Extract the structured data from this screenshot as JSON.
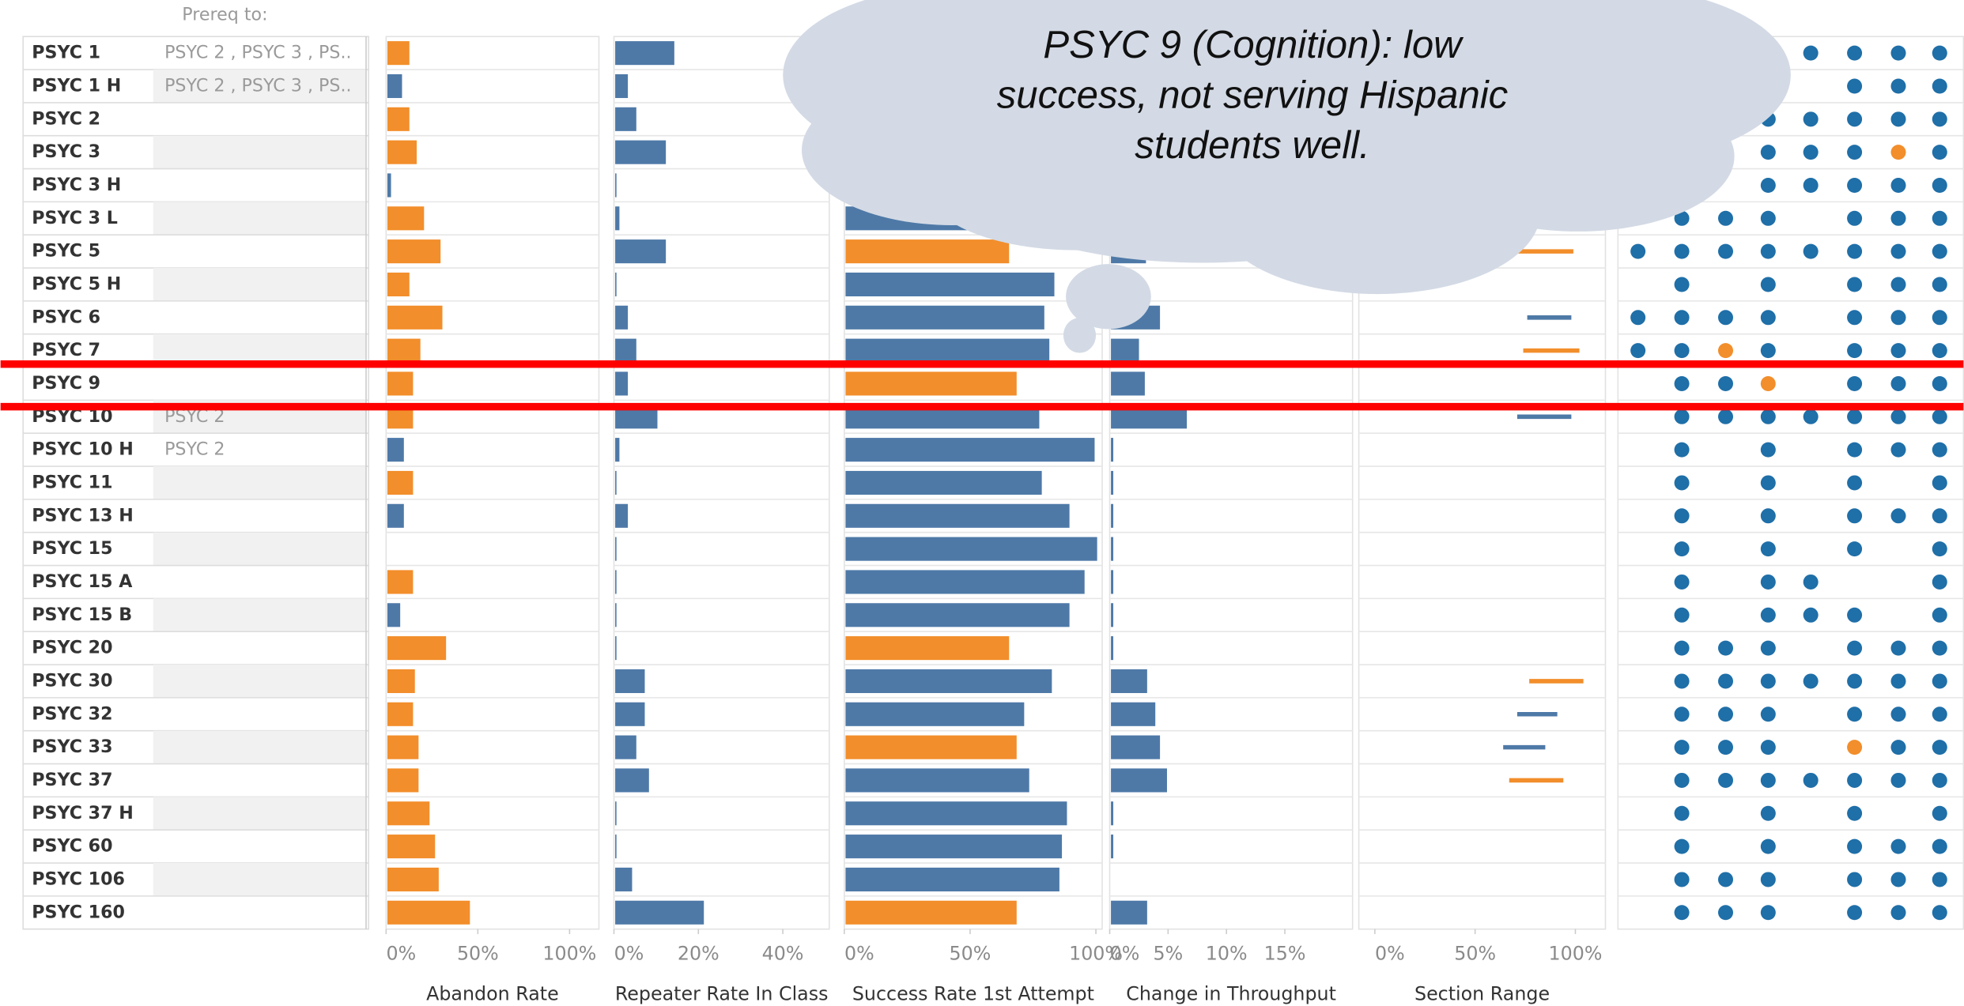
{
  "table": {
    "header": "Prereq to:",
    "courses": [
      "PSYC 1",
      "PSYC 1 H",
      "PSYC 2",
      "PSYC 3",
      "PSYC 3 H",
      "PSYC 3 L",
      "PSYC 5",
      "PSYC 5 H",
      "PSYC 6",
      "PSYC 7",
      "PSYC 9",
      "PSYC 10",
      "PSYC 10 H",
      "PSYC 11",
      "PSYC 13 H",
      "PSYC 15",
      "PSYC 15 A",
      "PSYC 15 B",
      "PSYC 20",
      "PSYC 30",
      "PSYC 32",
      "PSYC 33",
      "PSYC 37",
      "PSYC 37 H",
      "PSYC 60",
      "PSYC 106",
      "PSYC 160"
    ],
    "prereqs": [
      "PSYC 2 , PSYC 3 , PS..",
      "PSYC 2 , PSYC 3 , PS..",
      null,
      null,
      null,
      null,
      null,
      null,
      null,
      null,
      null,
      "PSYC 2",
      "PSYC 2",
      null,
      null,
      null,
      null,
      null,
      null,
      null,
      null,
      null,
      null,
      null,
      null,
      null,
      null
    ]
  },
  "annotation": {
    "lines": [
      "PSYC 9 (Cognition): low",
      "success, not serving Hispanic",
      "students well."
    ]
  },
  "chart_data": [
    {
      "type": "bar",
      "xlabel": "Abandon Rate",
      "values": [
        12,
        8,
        12,
        16,
        2,
        20,
        29,
        12,
        30,
        18,
        14,
        14,
        9,
        14,
        9,
        0,
        14,
        7,
        32,
        15,
        14,
        17,
        17,
        23,
        26,
        28,
        45
      ],
      "colors": [
        "#f28e2b",
        "#4e79a7",
        "#f28e2b",
        "#f28e2b",
        "#4e79a7",
        "#f28e2b",
        "#f28e2b",
        "#f28e2b",
        "#f28e2b",
        "#f28e2b",
        "#f28e2b",
        "#f28e2b",
        "#4e79a7",
        "#f28e2b",
        "#4e79a7",
        "#f28e2b",
        "#f28e2b",
        "#4e79a7",
        "#f28e2b",
        "#f28e2b",
        "#f28e2b",
        "#f28e2b",
        "#f28e2b",
        "#f28e2b",
        "#f28e2b",
        "#f28e2b",
        "#f28e2b"
      ],
      "xlim": [
        0,
        116
      ],
      "xticks": [
        {
          "value": 0,
          "label": "0%"
        },
        {
          "value": 50,
          "label": "50%"
        },
        {
          "value": 100,
          "label": "100%"
        }
      ]
    },
    {
      "type": "bar",
      "xlabel": "Repeater Rate In Class",
      "values": [
        14,
        3,
        5,
        12,
        0.3,
        1,
        12,
        0.3,
        3,
        5,
        3,
        10,
        1,
        0.3,
        3,
        0.3,
        0.3,
        0.3,
        0.3,
        7,
        7,
        5,
        8,
        0.3,
        0.3,
        4,
        21
      ],
      "color": "#4e79a7",
      "xlim": [
        0,
        51
      ],
      "xticks": [
        {
          "value": 0,
          "label": "0%"
        },
        {
          "value": 20,
          "label": "20%"
        },
        {
          "value": 40,
          "label": "40%"
        }
      ]
    },
    {
      "type": "bar",
      "xlabel": "Success Rate 1st Attempt",
      "values": [
        75,
        90,
        72,
        70,
        92,
        80,
        65,
        83,
        79,
        81,
        68,
        77,
        99,
        78,
        89,
        100,
        95,
        89,
        65,
        82,
        71,
        68,
        73,
        88,
        86,
        85,
        68
      ],
      "colors": [
        "#4e79a7",
        "#4e79a7",
        "#4e79a7",
        "#4e79a7",
        "#4e79a7",
        "#4e79a7",
        "#f28e2b",
        "#4e79a7",
        "#4e79a7",
        "#4e79a7",
        "#f28e2b",
        "#4e79a7",
        "#4e79a7",
        "#4e79a7",
        "#4e79a7",
        "#4e79a7",
        "#4e79a7",
        "#4e79a7",
        "#f28e2b",
        "#4e79a7",
        "#4e79a7",
        "#f28e2b",
        "#4e79a7",
        "#4e79a7",
        "#4e79a7",
        "#4e79a7",
        "#f28e2b"
      ],
      "xlim": [
        0,
        102.5
      ],
      "xticks": [
        {
          "value": 0,
          "label": "0%"
        },
        {
          "value": 50,
          "label": "50%"
        },
        {
          "value": 100,
          "label": "100%"
        }
      ]
    },
    {
      "type": "bar",
      "xlabel": "Change in Throughput",
      "values": [
        2,
        1,
        3,
        2,
        0.2,
        1,
        3,
        0.2,
        4.2,
        2.4,
        2.9,
        6.5,
        0.2,
        0.2,
        0.2,
        0.2,
        0.2,
        0.2,
        0.2,
        3.1,
        3.8,
        4.2,
        4.8,
        0.2,
        0.2,
        0,
        3.1
      ],
      "color": "#4e79a7",
      "xlim": [
        0,
        20.8
      ],
      "xticks": [
        {
          "value": 0,
          "label": "0%"
        },
        {
          "value": 5,
          "label": "5%"
        },
        {
          "value": 10,
          "label": "10%"
        },
        {
          "value": 15,
          "label": "15%"
        }
      ]
    },
    {
      "type": "range",
      "xlabel": "Section Range",
      "low": [
        null,
        null,
        null,
        null,
        null,
        null,
        43,
        null,
        76,
        74,
        null,
        71,
        null,
        null,
        null,
        null,
        null,
        null,
        null,
        77,
        71,
        64,
        67,
        null,
        null,
        null,
        null
      ],
      "high": [
        null,
        null,
        null,
        null,
        null,
        null,
        99,
        null,
        98,
        102,
        null,
        98,
        null,
        null,
        null,
        null,
        null,
        null,
        null,
        104,
        91,
        85,
        94,
        null,
        null,
        null,
        null
      ],
      "colors": [
        null,
        null,
        null,
        null,
        null,
        null,
        "#f28e2b",
        null,
        "#4e79a7",
        "#f28e2b",
        null,
        "#4e79a7",
        null,
        null,
        null,
        null,
        null,
        null,
        null,
        "#f28e2b",
        "#4e79a7",
        "#4e79a7",
        "#f28e2b",
        null,
        null,
        null,
        null
      ],
      "xlim": [
        -8,
        115
      ],
      "xticks": [
        {
          "value": 0,
          "label": "0%"
        },
        {
          "value": 50,
          "label": "50%"
        },
        {
          "value": 100,
          "label": "100%"
        }
      ]
    },
    {
      "type": "dot_matrix",
      "palette": [
        "#1f6fa8",
        "#f28e2b"
      ],
      "values": [
        [
          null,
          null,
          null,
          null,
          1,
          1,
          1,
          1
        ],
        [
          null,
          null,
          null,
          null,
          null,
          1,
          1,
          1
        ],
        [
          null,
          null,
          null,
          1,
          1,
          1,
          1,
          1
        ],
        [
          null,
          null,
          1,
          1,
          1,
          1,
          2,
          1
        ],
        [
          null,
          1,
          null,
          1,
          1,
          1,
          1,
          1
        ],
        [
          null,
          1,
          1,
          1,
          null,
          1,
          1,
          1
        ],
        [
          1,
          1,
          1,
          1,
          1,
          1,
          1,
          1
        ],
        [
          null,
          1,
          null,
          1,
          null,
          1,
          1,
          1
        ],
        [
          1,
          1,
          1,
          1,
          null,
          1,
          1,
          1
        ],
        [
          1,
          1,
          2,
          1,
          null,
          1,
          1,
          1
        ],
        [
          null,
          1,
          1,
          2,
          null,
          1,
          1,
          1
        ],
        [
          null,
          1,
          1,
          1,
          1,
          1,
          1,
          1
        ],
        [
          null,
          1,
          null,
          1,
          null,
          1,
          1,
          1
        ],
        [
          null,
          1,
          null,
          1,
          null,
          1,
          null,
          1
        ],
        [
          null,
          1,
          null,
          1,
          null,
          1,
          1,
          1
        ],
        [
          null,
          1,
          null,
          1,
          null,
          1,
          null,
          1
        ],
        [
          null,
          1,
          null,
          1,
          1,
          null,
          null,
          1
        ],
        [
          null,
          1,
          null,
          1,
          1,
          1,
          null,
          1
        ],
        [
          null,
          1,
          1,
          1,
          null,
          1,
          1,
          1
        ],
        [
          null,
          1,
          1,
          1,
          1,
          1,
          1,
          1
        ],
        [
          null,
          1,
          1,
          1,
          null,
          1,
          1,
          1
        ],
        [
          null,
          1,
          1,
          1,
          null,
          2,
          1,
          1
        ],
        [
          null,
          1,
          1,
          1,
          1,
          1,
          1,
          1
        ],
        [
          null,
          1,
          null,
          1,
          null,
          1,
          null,
          1
        ],
        [
          null,
          1,
          null,
          1,
          null,
          1,
          1,
          1
        ],
        [
          null,
          1,
          1,
          1,
          null,
          1,
          1,
          1
        ],
        [
          null,
          1,
          1,
          1,
          null,
          1,
          1,
          1
        ]
      ]
    }
  ]
}
